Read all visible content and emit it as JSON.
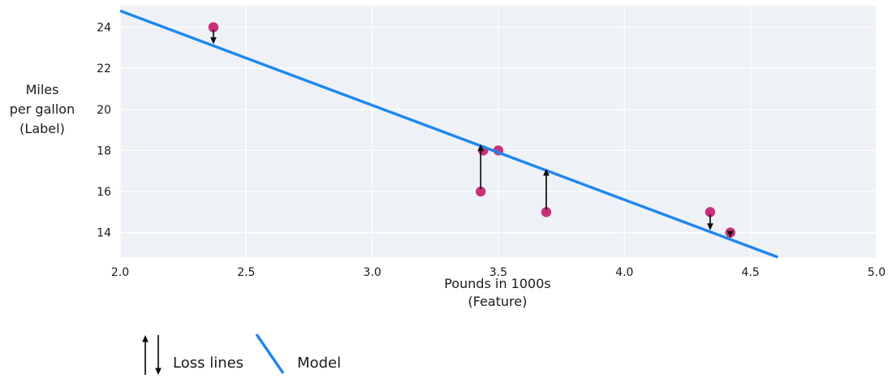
{
  "chart_data": {
    "type": "scatter",
    "title": "",
    "xlabel": "Pounds in 1000s\n(Feature)",
    "ylabel": "Miles\nper gallon\n(Label)",
    "xlim": [
      2.0,
      5.0
    ],
    "ylim": [
      12.8,
      25.05
    ],
    "grid": true,
    "x_ticks": [
      2.0,
      2.5,
      3.0,
      3.5,
      4.0,
      4.5,
      5.0
    ],
    "x_tick_labels": [
      "2.0",
      "2.5",
      "3.0",
      "3.5",
      "4.0",
      "4.5",
      "5.0"
    ],
    "y_ticks": [
      14,
      16,
      18,
      20,
      22,
      24
    ],
    "y_tick_labels": [
      "14",
      "16",
      "18",
      "20",
      "22",
      "24"
    ],
    "points": [
      {
        "x": 2.37,
        "y": 24
      },
      {
        "x": 3.43,
        "y": 16
      },
      {
        "x": 3.44,
        "y": 18
      },
      {
        "x": 3.5,
        "y": 18
      },
      {
        "x": 3.69,
        "y": 15
      },
      {
        "x": 4.34,
        "y": 15
      },
      {
        "x": 4.42,
        "y": 14
      }
    ],
    "model": {
      "slope": -4.6,
      "intercept": 34
    },
    "loss_arrow_min_residual": 0.3,
    "legend": {
      "position": "bottom-left",
      "items": [
        {
          "glyph": "loss-arrows",
          "label": "Loss lines"
        },
        {
          "glyph": "model-line",
          "label": "Model"
        }
      ]
    },
    "colors": {
      "point": "#ca3079",
      "model_line": "#1e86f0",
      "plot_bg": "#eef1f6",
      "grid": "#ffffff",
      "arrow": "#0d0d0d",
      "text": "#1a1a1a"
    }
  }
}
